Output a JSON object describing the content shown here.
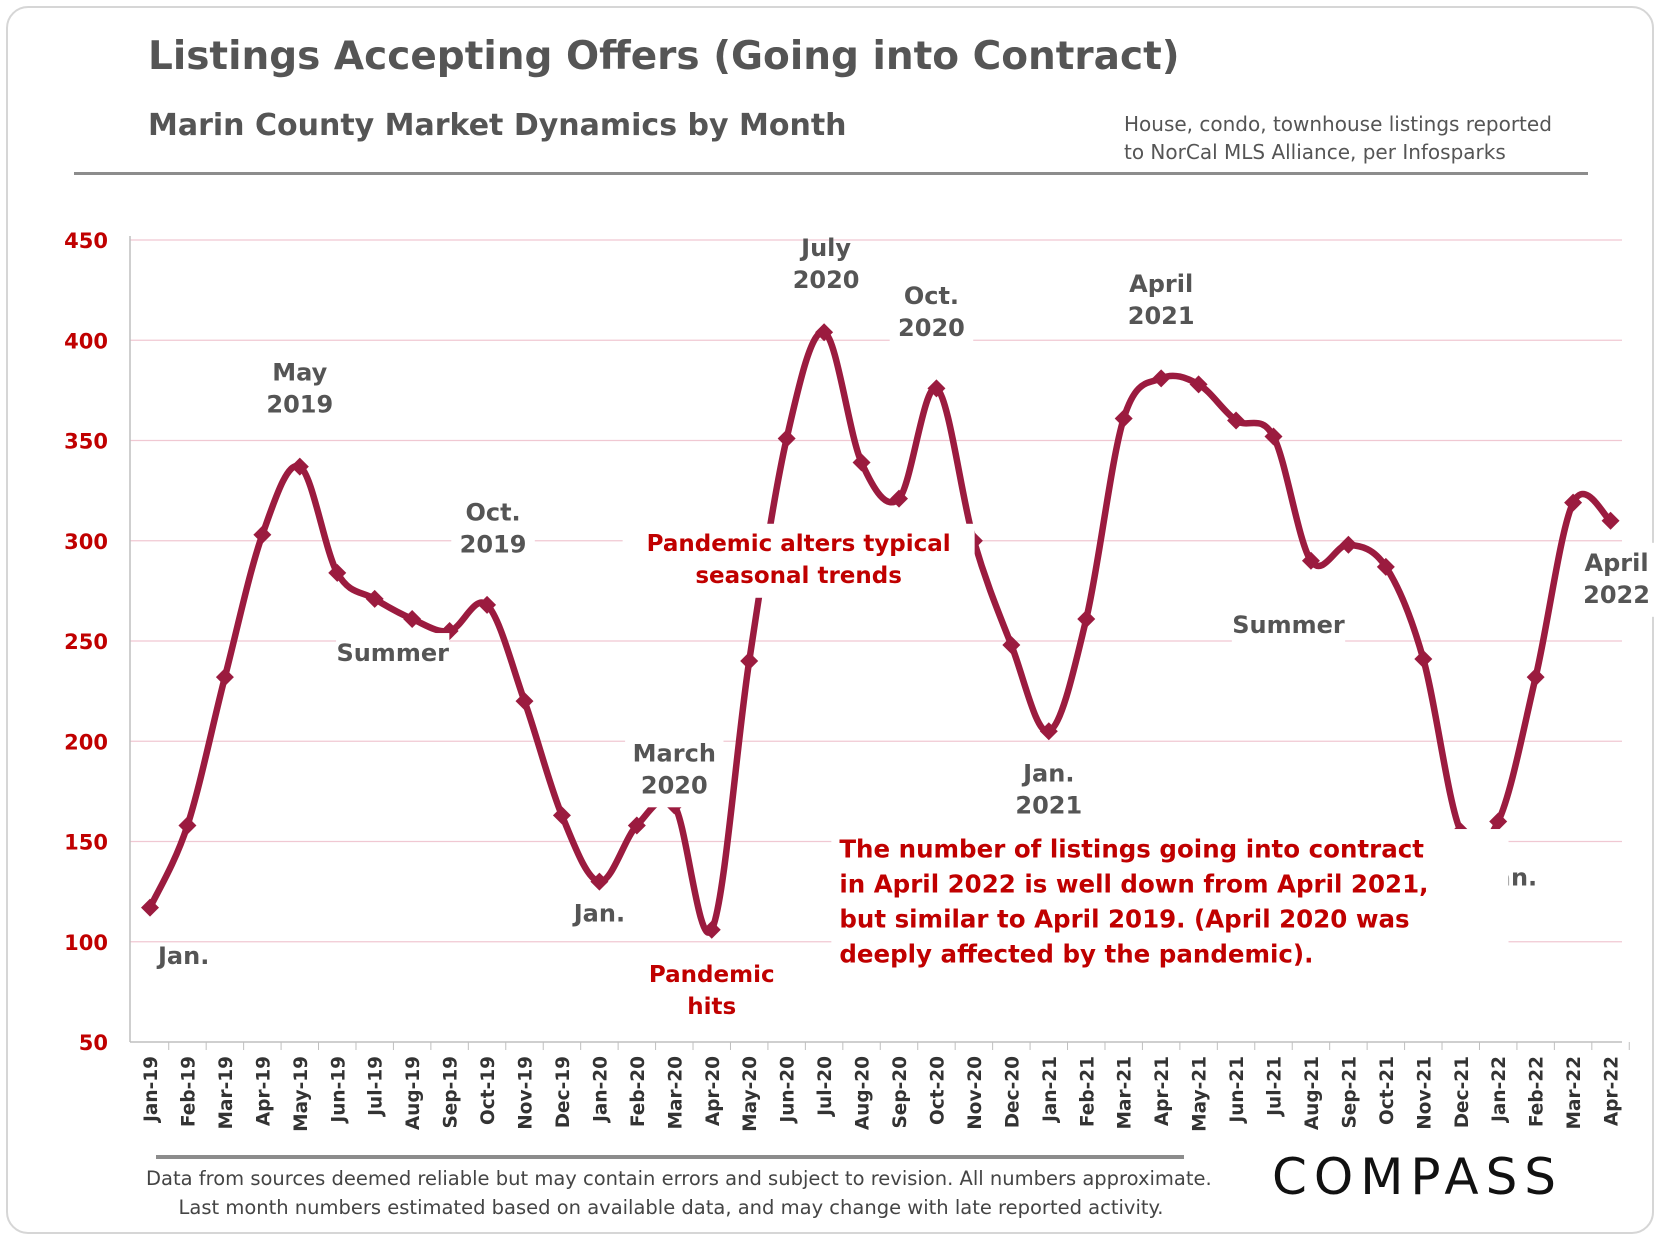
{
  "header": {
    "title": "Listings Accepting Offers (Going into Contract)",
    "subtitle": "Marin County Market Dynamics by Month",
    "source_line1": "House, condo, townhouse listings reported",
    "source_line2": "to NorCal MLS Alliance, per Infosparks"
  },
  "footer": {
    "disclaimer_line1": "Data from sources deemed reliable but may contain errors and subject to revision. All numbers approximate.",
    "disclaimer_line2": "Last month numbers estimated based on available data, and may change with late reported activity.",
    "logo": "COMPASS"
  },
  "chart_data": {
    "type": "line",
    "title": "Listings Accepting Offers (Going into Contract)",
    "subtitle": "Marin County Market Dynamics by Month",
    "xlabel": "",
    "ylabel": "",
    "ylim": [
      50,
      450
    ],
    "yticks": [
      50,
      100,
      150,
      200,
      250,
      300,
      350,
      400,
      450
    ],
    "grid": true,
    "legend": "none",
    "colors": {
      "line": "#9b1b3f",
      "axis_text": "#c00000",
      "annotation": "#555555",
      "highlight": "#c00000",
      "grid": "#f0c8d2"
    },
    "categories": [
      "Jan-19",
      "Feb-19",
      "Mar-19",
      "Apr-19",
      "May-19",
      "Jun-19",
      "Jul-19",
      "Aug-19",
      "Sep-19",
      "Oct-19",
      "Nov-19",
      "Dec-19",
      "Jan-20",
      "Feb-20",
      "Mar-20",
      "Apr-20",
      "May-20",
      "Jun-20",
      "Jul-20",
      "Aug-20",
      "Sep-20",
      "Oct-20",
      "Nov-20",
      "Dec-20",
      "Jan-21",
      "Feb-21",
      "Mar-21",
      "Apr-21",
      "May-21",
      "Jun-21",
      "Jul-21",
      "Aug-21",
      "Sep-21",
      "Oct-21",
      "Nov-21",
      "Dec-21",
      "Jan-22",
      "Feb-22",
      "Mar-22",
      "Apr-22"
    ],
    "series": [
      {
        "values": [
          117,
          158,
          232,
          303,
          337,
          284,
          271,
          261,
          255,
          268,
          220,
          163,
          130,
          158,
          168,
          106,
          240,
          351,
          404,
          339,
          321,
          376,
          300,
          248,
          205,
          261,
          361,
          381,
          378,
          360,
          352,
          290,
          298,
          287,
          241,
          155,
          160,
          232,
          319,
          310
        ]
      }
    ],
    "annotations": [
      {
        "text_lines": [
          "Jan."
        ],
        "style": "gray"
      },
      {
        "text_lines": [
          "May",
          "2019"
        ],
        "style": "gray"
      },
      {
        "text_lines": [
          "Summer"
        ],
        "style": "gray"
      },
      {
        "text_lines": [
          "Oct.",
          "2019"
        ],
        "style": "gray"
      },
      {
        "text_lines": [
          "Jan."
        ],
        "style": "gray"
      },
      {
        "text_lines": [
          "March",
          "2020"
        ],
        "style": "gray"
      },
      {
        "text_lines": [
          "Pandemic",
          "hits"
        ],
        "style": "red"
      },
      {
        "text_lines": [
          "Pandemic alters typical",
          "seasonal trends"
        ],
        "style": "red"
      },
      {
        "text_lines": [
          "July",
          "2020"
        ],
        "style": "gray"
      },
      {
        "text_lines": [
          "Oct.",
          "2020"
        ],
        "style": "gray"
      },
      {
        "text_lines": [
          "Jan.",
          "2021"
        ],
        "style": "gray"
      },
      {
        "text_lines": [
          "April",
          "2021"
        ],
        "style": "gray"
      },
      {
        "text_lines": [
          "Summer"
        ],
        "style": "gray"
      },
      {
        "text_lines": [
          "Dec.-Jan."
        ],
        "style": "gray"
      },
      {
        "text_lines": [
          "April",
          "2022"
        ],
        "style": "gray"
      },
      {
        "text_lines": [
          "The number of listings going into contract",
          "in April 2022 is well down from April 2021,",
          "but similar to April 2019. (April 2020 was",
          "deeply affected by the pandemic)."
        ],
        "style": "red-note"
      }
    ]
  }
}
